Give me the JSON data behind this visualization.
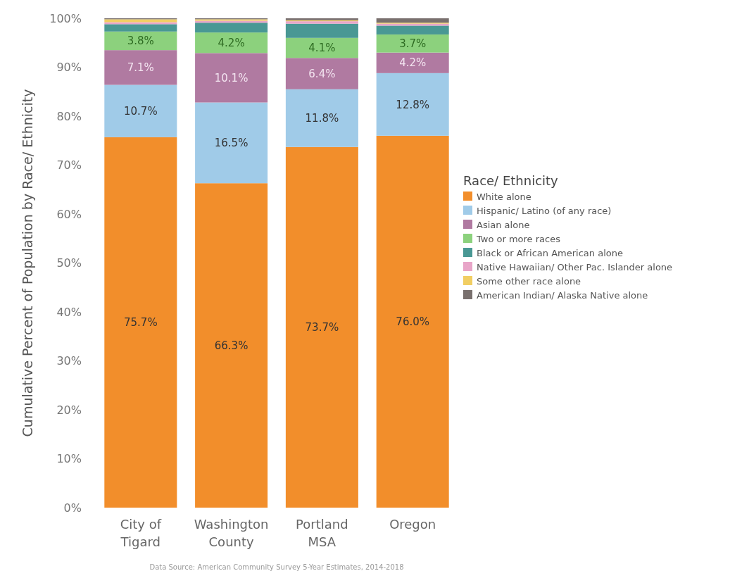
{
  "chart_data": {
    "type": "bar",
    "stacked": true,
    "ylabel": "Cumulative Percent of Population by Race/ Ethnicity",
    "legend_title": "Race/ Ethnicity",
    "legend": "right",
    "categories": [
      "City of Tigard",
      "Washington County",
      "Portland MSA",
      "Oregon"
    ],
    "ylim": [
      0,
      100
    ],
    "yticks": [
      {
        "value": 0,
        "label": "0%"
      },
      {
        "value": 10,
        "label": "10%"
      },
      {
        "value": 20,
        "label": "20%"
      },
      {
        "value": 30,
        "label": "30%"
      },
      {
        "value": 40,
        "label": "40%"
      },
      {
        "value": 50,
        "label": "50%"
      },
      {
        "value": 60,
        "label": "60%"
      },
      {
        "value": 70,
        "label": "70%"
      },
      {
        "value": 80,
        "label": "80%"
      },
      {
        "value": 90,
        "label": "90%"
      },
      {
        "value": 100,
        "label": "100%"
      }
    ],
    "series": [
      {
        "name": "White alone",
        "color": "#f28e2b",
        "values": [
          75.7,
          66.3,
          73.7,
          76.0
        ],
        "value_labels": [
          "75.7%",
          "66.3%",
          "73.7%",
          "76.0%"
        ]
      },
      {
        "name": "Hispanic/ Latino (of any race)",
        "color": "#a0cbe8",
        "values": [
          10.7,
          16.5,
          11.8,
          12.8
        ],
        "value_labels": [
          "10.7%",
          "16.5%",
          "11.8%",
          "12.8%"
        ]
      },
      {
        "name": "Asian alone",
        "color": "#b07aa1",
        "values": [
          7.1,
          10.1,
          6.4,
          4.2
        ],
        "value_labels": [
          "7.1%",
          "10.1%",
          "6.4%",
          "4.2%"
        ]
      },
      {
        "name": "Two or more races",
        "color": "#8cd17d",
        "values": [
          3.8,
          4.2,
          4.1,
          3.7
        ],
        "value_labels": [
          "3.8%",
          "4.2%",
          "4.1%",
          "3.7%"
        ]
      },
      {
        "name": "Black or African American alone",
        "color": "#499894",
        "values": [
          1.5,
          2.0,
          2.9,
          1.8
        ]
      },
      {
        "name": "Native Hawaiian/ Other Pac. Islander alone",
        "color": "#e8a5c8",
        "values": [
          0.4,
          0.4,
          0.5,
          0.4
        ]
      },
      {
        "name": "Some other race alone",
        "color": "#f1ce63",
        "values": [
          0.6,
          0.3,
          0.2,
          0.2
        ]
      },
      {
        "name": "American Indian/ Alaska Native alone",
        "color": "#79706e",
        "values": [
          0.2,
          0.2,
          0.4,
          0.9
        ]
      }
    ],
    "annotations": [
      "Data Source: American Community Survey 5-Year Estimates, 2014-2018"
    ]
  }
}
